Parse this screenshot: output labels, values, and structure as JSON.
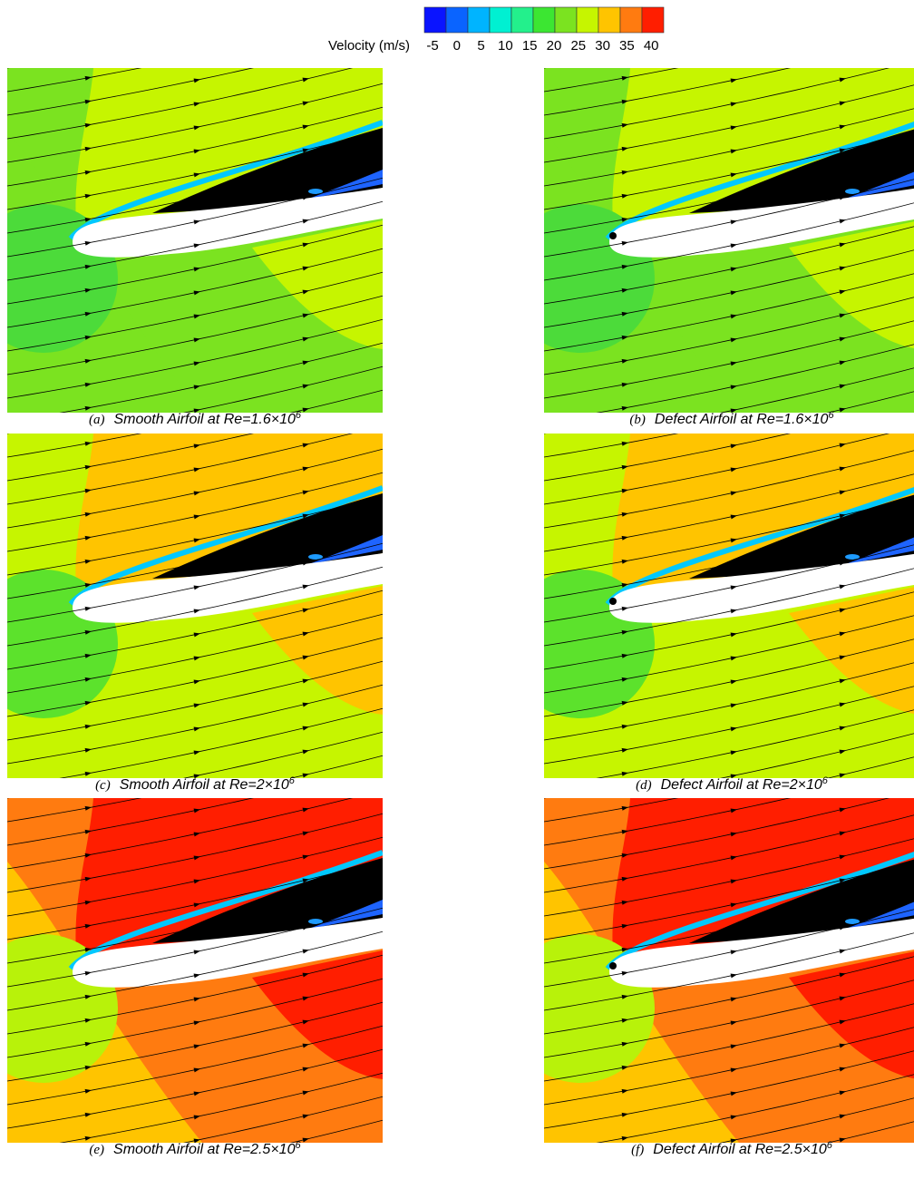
{
  "colorbar": {
    "label": "Velocity (m/s)",
    "colors": [
      "#0a14ff",
      "#0a64ff",
      "#00b4ff",
      "#00f0d2",
      "#23f08c",
      "#3ce632",
      "#7be320",
      "#c6f500",
      "#ffc400",
      "#ff7b10",
      "#ff1e00"
    ],
    "ticks": [
      -5,
      0,
      5,
      10,
      15,
      20,
      25,
      30,
      35,
      40
    ]
  },
  "panels": [
    {
      "letter": "(a)",
      "caption": "Smooth Airfoil at Re=1.6×10",
      "exponent": "6",
      "defect": false,
      "colors": {
        "base": "#7be320",
        "left": "#7be320",
        "upper": "#c6f500",
        "lower_right": "#c6f500",
        "stagnation": "#4cdb3a"
      }
    },
    {
      "letter": "(b)",
      "caption": "Defect Airfoil at Re=1.6×10",
      "exponent": "6",
      "defect": true,
      "colors": {
        "base": "#7be320",
        "left": "#7be320",
        "upper": "#c6f500",
        "lower_right": "#c6f500",
        "stagnation": "#4cdb3a"
      }
    },
    {
      "letter": "(c)",
      "caption": "Smooth Airfoil at Re=2×10",
      "exponent": "6",
      "defect": false,
      "colors": {
        "base": "#c6f500",
        "left": "#c6f500",
        "upper": "#ffc400",
        "lower_right": "#ffc400",
        "stagnation": "#5ce22c"
      }
    },
    {
      "letter": "(d)",
      "caption": "Defect Airfoil at Re=2×10",
      "exponent": "6",
      "defect": true,
      "colors": {
        "base": "#c6f500",
        "left": "#c6f500",
        "upper": "#ffc400",
        "lower_right": "#ffc400",
        "stagnation": "#5ce22c"
      }
    },
    {
      "letter": "(e)",
      "caption": "Smooth Airfoil at Re=2.5×10",
      "exponent": "6",
      "defect": false,
      "colors": {
        "base": "#ff7b10",
        "left": "#ffc400",
        "upper": "#ff1e00",
        "lower_right": "#ff1e00",
        "stagnation": "#b8f20a"
      }
    },
    {
      "letter": "(f)",
      "caption": "Defect Airfoil at Re=2.5×10",
      "exponent": "6",
      "defect": true,
      "colors": {
        "base": "#ff7b10",
        "left": "#ffc400",
        "upper": "#ff1e00",
        "lower_right": "#ff1e00",
        "stagnation": "#b8f20a"
      }
    }
  ]
}
